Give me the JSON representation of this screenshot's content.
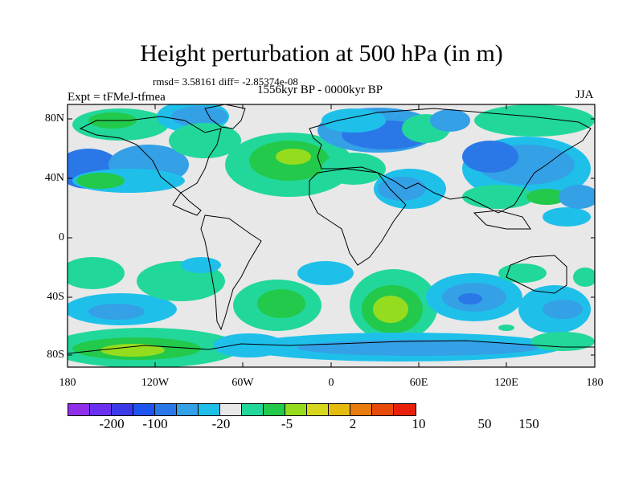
{
  "title": "Height perturbation at 500 hPa (in m)",
  "stats": "rmsd= 3.58161 diff= -2.85374e-08",
  "period": "1556kyr BP - 0000kyr BP",
  "experiment": "Expt = tFMeJ-tfmea",
  "season": "JJA",
  "lat_labels": [
    "80N",
    "40N",
    "0",
    "40S",
    "80S"
  ],
  "lon_labels": [
    "180",
    "120W",
    "60W",
    "0",
    "60E",
    "120E",
    "180"
  ],
  "colorbar": {
    "colors": [
      "#8f2fe8",
      "#6a2ff0",
      "#3a3ae8",
      "#1e55f0",
      "#2a78e8",
      "#34a0e6",
      "#1ec0ea",
      "#e8e8e8",
      "#22d79a",
      "#22c94a",
      "#96dc1e",
      "#d7d81e",
      "#e6bb10",
      "#e87d0e",
      "#e84a0a",
      "#e8200a"
    ],
    "labels": [
      "-200",
      "-100",
      "-20",
      "-5",
      "2",
      "10",
      "50",
      "150"
    ]
  }
}
